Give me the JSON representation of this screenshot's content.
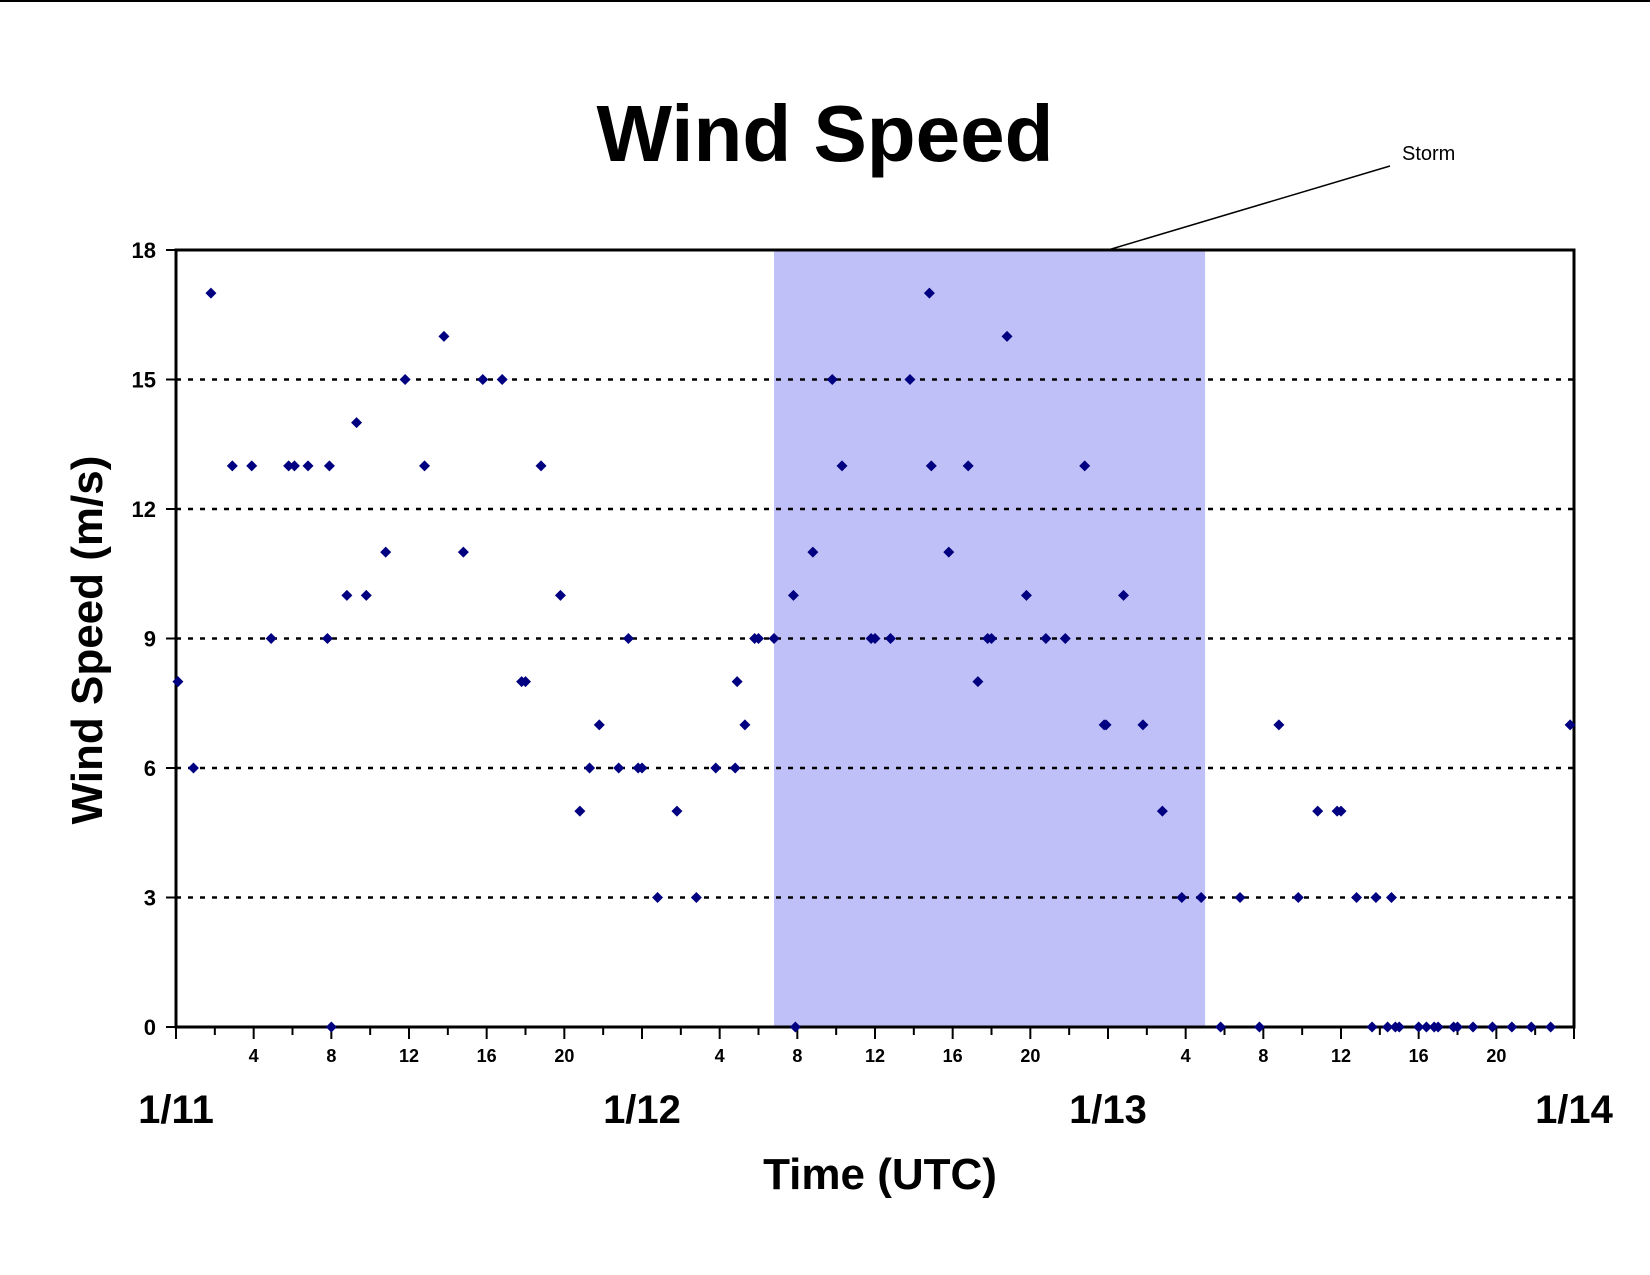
{
  "chart_data": {
    "type": "scatter",
    "title": "Wind Speed",
    "xlabel": "Time (UTC)",
    "ylabel": "Wind Speed (m/s)",
    "ylim": [
      0,
      18
    ],
    "yticks": [
      0,
      3,
      6,
      9,
      12,
      15,
      18
    ],
    "xlim_hours": [
      0,
      72
    ],
    "hour_ticks": [
      {
        "h": 4,
        "label": "4"
      },
      {
        "h": 8,
        "label": "8"
      },
      {
        "h": 12,
        "label": "12"
      },
      {
        "h": 16,
        "label": "16"
      },
      {
        "h": 20,
        "label": "20"
      },
      {
        "h": 28,
        "label": "4"
      },
      {
        "h": 32,
        "label": "8"
      },
      {
        "h": 36,
        "label": "12"
      },
      {
        "h": 40,
        "label": "16"
      },
      {
        "h": 44,
        "label": "20"
      },
      {
        "h": 52,
        "label": "4"
      },
      {
        "h": 56,
        "label": "8"
      },
      {
        "h": 60,
        "label": "12"
      },
      {
        "h": 64,
        "label": "16"
      },
      {
        "h": 68,
        "label": "20"
      }
    ],
    "day_labels": [
      {
        "h": 0,
        "label": "1/11"
      },
      {
        "h": 24,
        "label": "1/12"
      },
      {
        "h": 48,
        "label": "1/13"
      },
      {
        "h": 72,
        "label": "1/14"
      }
    ],
    "grid": "horizontal dotted",
    "marker_color": "#000080",
    "shaded_region": {
      "x_hours": [
        30.8,
        53
      ],
      "color": "#C0C0F8",
      "label": "Storm"
    },
    "points": [
      [
        0.1,
        8
      ],
      [
        0.9,
        6
      ],
      [
        1.8,
        17
      ],
      [
        2.9,
        13
      ],
      [
        3.9,
        13
      ],
      [
        4.9,
        9
      ],
      [
        5.8,
        13
      ],
      [
        6.1,
        13
      ],
      [
        6.8,
        13
      ],
      [
        7.8,
        9
      ],
      [
        7.9,
        13
      ],
      [
        8.0,
        0
      ],
      [
        8.8,
        10
      ],
      [
        9.3,
        14
      ],
      [
        9.8,
        10
      ],
      [
        10.8,
        11
      ],
      [
        11.8,
        15
      ],
      [
        12.8,
        13
      ],
      [
        13.8,
        16
      ],
      [
        14.8,
        11
      ],
      [
        15.8,
        15
      ],
      [
        16.8,
        15
      ],
      [
        17.8,
        8
      ],
      [
        18.0,
        8
      ],
      [
        18.8,
        13
      ],
      [
        19.8,
        10
      ],
      [
        20.8,
        5
      ],
      [
        21.3,
        6
      ],
      [
        21.8,
        7
      ],
      [
        22.8,
        6
      ],
      [
        23.3,
        9
      ],
      [
        23.8,
        6
      ],
      [
        24.0,
        6
      ],
      [
        24.8,
        3
      ],
      [
        25.8,
        5
      ],
      [
        26.8,
        3
      ],
      [
        27.8,
        6
      ],
      [
        28.8,
        6
      ],
      [
        28.9,
        8
      ],
      [
        29.3,
        7
      ],
      [
        29.8,
        9
      ],
      [
        30.0,
        9
      ],
      [
        30.8,
        9
      ],
      [
        31.8,
        10
      ],
      [
        31.9,
        0
      ],
      [
        32.8,
        11
      ],
      [
        33.8,
        15
      ],
      [
        34.3,
        13
      ],
      [
        35.8,
        9
      ],
      [
        36.0,
        9
      ],
      [
        36.8,
        9
      ],
      [
        37.8,
        15
      ],
      [
        38.8,
        17
      ],
      [
        38.9,
        13
      ],
      [
        39.8,
        11
      ],
      [
        40.8,
        13
      ],
      [
        41.3,
        8
      ],
      [
        41.8,
        9
      ],
      [
        42.0,
        9
      ],
      [
        42.8,
        16
      ],
      [
        43.8,
        10
      ],
      [
        44.8,
        9
      ],
      [
        45.8,
        9
      ],
      [
        46.8,
        13
      ],
      [
        47.8,
        7
      ],
      [
        47.9,
        7
      ],
      [
        48.8,
        10
      ],
      [
        49.8,
        7
      ],
      [
        50.8,
        5
      ],
      [
        51.8,
        3
      ],
      [
        52.8,
        3
      ],
      [
        53.8,
        0
      ],
      [
        54.8,
        3
      ],
      [
        55.8,
        0
      ],
      [
        56.8,
        7
      ],
      [
        57.8,
        3
      ],
      [
        58.8,
        5
      ],
      [
        59.8,
        5
      ],
      [
        60.0,
        5
      ],
      [
        60.8,
        3
      ],
      [
        61.6,
        0
      ],
      [
        61.8,
        3
      ],
      [
        62.4,
        0
      ],
      [
        62.6,
        3
      ],
      [
        62.8,
        0
      ],
      [
        63.0,
        0
      ],
      [
        64.0,
        0
      ],
      [
        64.4,
        0
      ],
      [
        64.8,
        0
      ],
      [
        65.0,
        0
      ],
      [
        65.8,
        0
      ],
      [
        66.0,
        0
      ],
      [
        66.8,
        0
      ],
      [
        67.8,
        0
      ],
      [
        68.8,
        0
      ],
      [
        69.8,
        0
      ],
      [
        70.8,
        0
      ],
      [
        71.8,
        7
      ]
    ]
  }
}
